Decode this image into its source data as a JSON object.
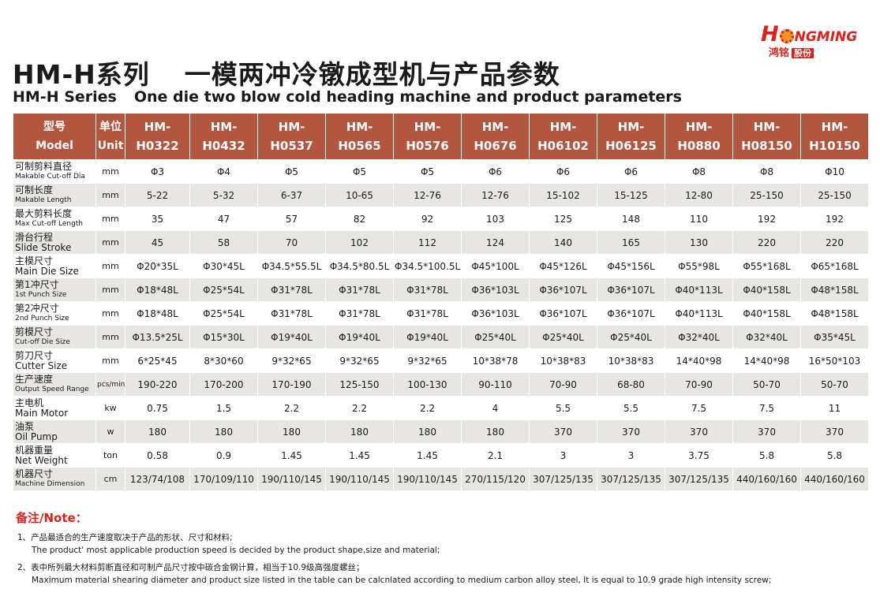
{
  "logo": {
    "brand_first": "H",
    "brand_rest": "NGMING",
    "cn": "鸿铭",
    "cn_box": "股份"
  },
  "title": {
    "cn_series": "HM-H系列",
    "cn_main": "一模两冲冷镦成型机与产品参数",
    "en_series": "HM-H Series",
    "en_main": "One die two blow cold heading machine and product parameters"
  },
  "table": {
    "header": {
      "param_cn": "型号",
      "param_en": "Model",
      "unit_cn": "单位",
      "unit_en": "Unit",
      "models": [
        {
          "a": "HM-",
          "b": "H0322"
        },
        {
          "a": "HM-",
          "b": "H0432"
        },
        {
          "a": "HM-",
          "b": "H0537"
        },
        {
          "a": "HM-",
          "b": "H0565"
        },
        {
          "a": "HM-",
          "b": "H0576"
        },
        {
          "a": "HM-",
          "b": "H0676"
        },
        {
          "a": "HM-",
          "b": "H06102"
        },
        {
          "a": "HM-",
          "b": "H06125"
        },
        {
          "a": "HM-",
          "b": "H0880"
        },
        {
          "a": "HM-",
          "b": "H08150"
        },
        {
          "a": "HM-",
          "b": "H10150"
        }
      ]
    },
    "rows": [
      {
        "cn": "可制剪料直径",
        "en": "Makable Cut-off Dia",
        "en_large": false,
        "unit": "mm",
        "unit_small": false,
        "values": [
          "Φ3",
          "Φ4",
          "Φ5",
          "Φ5",
          "Φ5",
          "Φ6",
          "Φ6",
          "Φ6",
          "Φ8",
          "Φ8",
          "Φ10"
        ]
      },
      {
        "cn": "可制长度",
        "en": "Makable Length",
        "en_large": false,
        "unit": "mm",
        "unit_small": false,
        "values": [
          "5-22",
          "5-32",
          "6-37",
          "10-65",
          "12-76",
          "12-76",
          "15-102",
          "15-125",
          "12-80",
          "25-150",
          "25-150"
        ]
      },
      {
        "cn": "最大剪料长度",
        "en": "Max Cut-off Length",
        "en_large": false,
        "unit": "mm",
        "unit_small": false,
        "values": [
          "35",
          "47",
          "57",
          "82",
          "92",
          "103",
          "125",
          "148",
          "110",
          "192",
          "192"
        ]
      },
      {
        "cn": "滑台行程",
        "en": "Slide Stroke",
        "en_large": true,
        "unit": "mm",
        "unit_small": false,
        "values": [
          "45",
          "58",
          "70",
          "102",
          "112",
          "124",
          "140",
          "165",
          "130",
          "220",
          "220"
        ]
      },
      {
        "cn": "主模尺寸",
        "en": "Main Die Size",
        "en_large": true,
        "unit": "mm",
        "unit_small": false,
        "values": [
          "Φ20*35L",
          "Φ30*45L",
          "Φ34.5*55.5L",
          "Φ34.5*80.5L",
          "Φ34.5*100.5L",
          "Φ45*100L",
          "Φ45*126L",
          "Φ45*156L",
          "Φ55*98L",
          "Φ55*168L",
          "Φ65*168L"
        ]
      },
      {
        "cn": "第1冲尺寸",
        "en": "1st Punch Size",
        "en_large": false,
        "unit": "mm",
        "unit_small": false,
        "values": [
          "Φ18*48L",
          "Φ25*54L",
          "Φ31*78L",
          "Φ31*78L",
          "Φ31*78L",
          "Φ36*103L",
          "Φ36*107L",
          "Φ36*107L",
          "Φ40*113L",
          "Φ40*158L",
          "Φ48*158L"
        ]
      },
      {
        "cn": "第2冲尺寸",
        "en": "2nd Punch Size",
        "en_large": false,
        "unit": "mm",
        "unit_small": false,
        "values": [
          "Φ18*48L",
          "Φ25*54L",
          "Φ31*78L",
          "Φ31*78L",
          "Φ31*78L",
          "Φ36*103L",
          "Φ36*107L",
          "Φ36*107L",
          "Φ40*113L",
          "Φ40*158L",
          "Φ48*158L"
        ]
      },
      {
        "cn": "剪模尺寸",
        "en": "Cut-off Die Size",
        "en_large": false,
        "unit": "mm",
        "unit_small": false,
        "values": [
          "Φ13.5*25L",
          "Φ15*30L",
          "Φ19*40L",
          "Φ19*40L",
          "Φ19*40L",
          "Φ25*40L",
          "Φ25*40L",
          "Φ25*40L",
          "Φ32*40L",
          "Φ32*40L",
          "Φ35*45L"
        ]
      },
      {
        "cn": "剪刀尺寸",
        "en": "Cutter Size",
        "en_large": true,
        "unit": "mm",
        "unit_small": false,
        "values": [
          "6*25*45",
          "8*30*60",
          "9*32*65",
          "9*32*65",
          "9*32*65",
          "10*38*78",
          "10*38*83",
          "10*38*83",
          "14*40*98",
          "14*40*98",
          "16*50*103"
        ]
      },
      {
        "cn": "生产速度",
        "en": "Output Speed Range",
        "en_large": false,
        "unit": "pcs/min",
        "unit_small": true,
        "values": [
          "190-220",
          "170-200",
          "170-190",
          "125-150",
          "100-130",
          "90-110",
          "70-90",
          "68-80",
          "70-90",
          "50-70",
          "50-70"
        ]
      },
      {
        "cn": "主电机",
        "en": "Main Motor",
        "en_large": true,
        "unit": "kw",
        "unit_small": false,
        "values": [
          "0.75",
          "1.5",
          "2.2",
          "2.2",
          "2.2",
          "4",
          "5.5",
          "5.5",
          "7.5",
          "7.5",
          "11"
        ]
      },
      {
        "cn": "油泵",
        "en": "Oil Pump",
        "en_large": true,
        "unit": "w",
        "unit_small": false,
        "values": [
          "180",
          "180",
          "180",
          "180",
          "180",
          "180",
          "370",
          "370",
          "370",
          "370",
          "370"
        ]
      },
      {
        "cn": "机器重量",
        "en": "Net Weight",
        "en_large": true,
        "unit": "ton",
        "unit_small": false,
        "values": [
          "0.58",
          "0.9",
          "1.45",
          "1.45",
          "1.45",
          "2.1",
          "3",
          "3",
          "3.75",
          "5.8",
          "5.8"
        ]
      },
      {
        "cn": "机器尺寸",
        "en": "Machine Dimension",
        "en_large": false,
        "unit": "cm",
        "unit_small": false,
        "values": [
          "123/74/108",
          "170/109/110",
          "190/110/145",
          "190/110/145",
          "190/110/145",
          "270/115/120",
          "307/125/135",
          "307/125/135",
          "307/125/135",
          "440/160/160",
          "440/160/160"
        ]
      }
    ]
  },
  "notes": {
    "title": "备注/Note：",
    "items": [
      {
        "cn": "1、产品最适合的生产速度取决于产品的形状、尺寸和材料;",
        "en": "The product' most applicable production speed is decided by the product shape,size and material;"
      },
      {
        "cn": "2、表中所列最大材料剪断直径和可制产品尺寸按中碳合金钢计算，相当于10.9级高强度螺丝；",
        "en": "Maximum material shearing diameter and product size listed in the table can be calcnlated according to medium carbon alloy steel, It is equal to 10.9 grade high intensity screw;"
      }
    ]
  }
}
